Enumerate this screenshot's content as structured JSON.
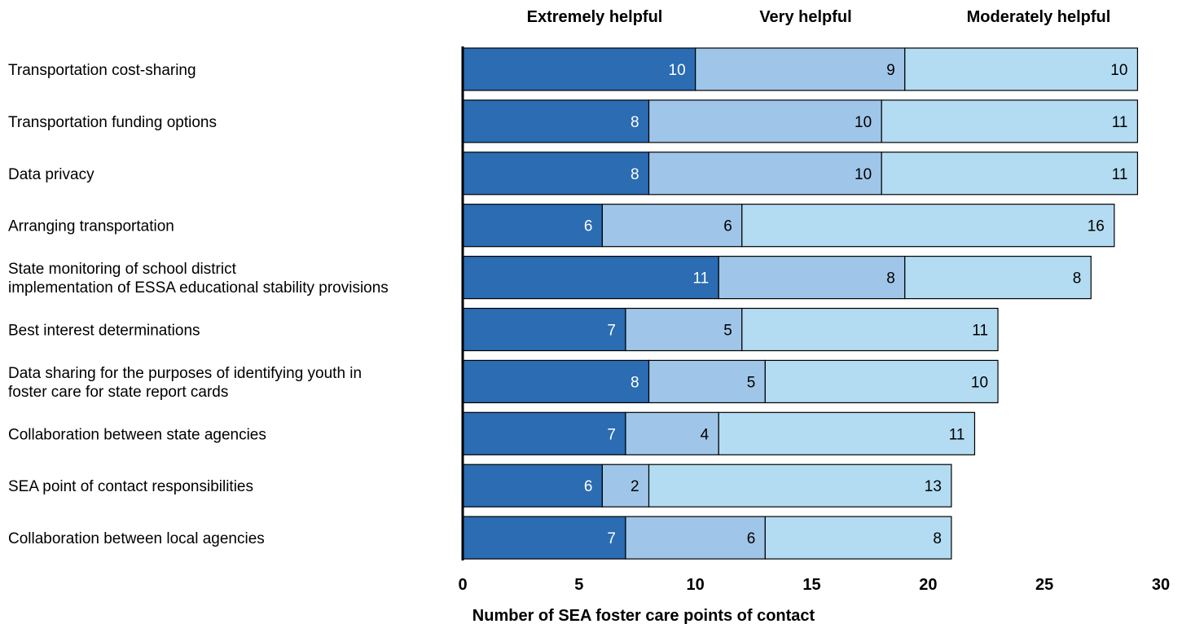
{
  "chart_data": {
    "type": "bar",
    "orientation": "horizontal",
    "stacked": true,
    "xlabel": "Number of SEA foster care points of contact",
    "xlim": [
      0,
      30
    ],
    "xticks": [
      "0",
      "5",
      "10",
      "15",
      "20",
      "25",
      "30"
    ],
    "legend_placement": "top",
    "grid": false,
    "categories": [
      [
        "Transportation cost-sharing"
      ],
      [
        "Transportation funding options"
      ],
      [
        "Data privacy"
      ],
      [
        "Arranging transportation"
      ],
      [
        "State monitoring of school district",
        "implementation of ESSA educational stability provisions"
      ],
      [
        "Best interest determinations"
      ],
      [
        "Data sharing for the purposes of identifying youth in",
        "foster care for state report cards"
      ],
      [
        "Collaboration between state agencies"
      ],
      [
        "SEA point of contact responsibilities"
      ],
      [
        "Collaboration between local agencies"
      ]
    ],
    "series": [
      {
        "name": "Extremely helpful",
        "color": "#2b6cb3",
        "label_color": "#ffffff",
        "values": [
          10,
          8,
          8,
          6,
          11,
          7,
          8,
          7,
          6,
          7
        ]
      },
      {
        "name": "Very helpful",
        "color": "#9fc6e8",
        "label_color": "#000000",
        "values": [
          9,
          10,
          10,
          6,
          8,
          5,
          5,
          4,
          2,
          6
        ]
      },
      {
        "name": "Moderately helpful",
        "color": "#b3dcf2",
        "label_color": "#000000",
        "values": [
          10,
          11,
          11,
          16,
          8,
          11,
          10,
          11,
          13,
          8
        ]
      }
    ]
  }
}
